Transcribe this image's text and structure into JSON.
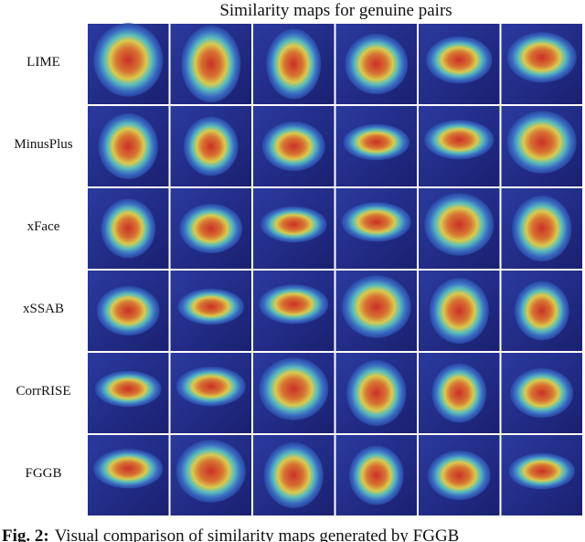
{
  "figure": {
    "title": "Similarity maps for genuine pairs",
    "rows": [
      {
        "label": "LIME"
      },
      {
        "label": "MinusPlus"
      },
      {
        "label": "xFace"
      },
      {
        "label": "xSSAB"
      },
      {
        "label": "CorrRISE"
      },
      {
        "label": "FGGB"
      }
    ]
  },
  "caption": {
    "label": "Fig. 2:",
    "text": "Visual comparison of similarity maps generated by FGGB"
  }
}
